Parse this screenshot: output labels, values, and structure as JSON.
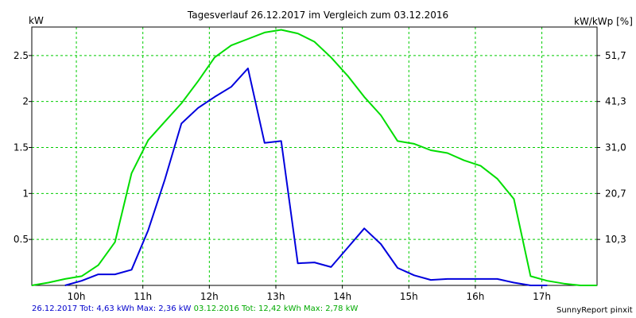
{
  "chart_data": {
    "type": "line",
    "title": "Tagesverlauf 26.12.2017 im Vergleich zum 03.12.2016",
    "ylabel": "kW",
    "ylabel_right": "kW/kWp [%]",
    "ylim": [
      0,
      2.81
    ],
    "x_ticks": [
      "10h",
      "11h",
      "12h",
      "13h",
      "14h",
      "15h",
      "16h",
      "17h"
    ],
    "y_ticks": [
      "0.5",
      "1",
      "1.5",
      "2",
      "2.5"
    ],
    "y_ticks_right": [
      "10,3",
      "20,7",
      "31,0",
      "41,3",
      "51,7"
    ],
    "grid": true,
    "colors": {
      "background": "#ffffff",
      "grid": "#00cc00",
      "axis": "#000000"
    },
    "series": [
      {
        "name": "26.12.2017",
        "color": "#0000dd",
        "x": [
          9.83,
          10.08,
          10.33,
          10.58,
          10.83,
          11.08,
          11.33,
          11.58,
          11.83,
          12.08,
          12.33,
          12.58,
          12.83,
          13.08,
          13.33,
          13.58,
          13.83,
          14.08,
          14.33,
          14.58,
          14.83,
          15.08,
          15.33,
          15.58,
          15.83,
          16.08,
          16.33,
          16.58,
          16.83,
          17.08
        ],
        "values": [
          0.0,
          0.05,
          0.12,
          0.12,
          0.17,
          0.6,
          1.15,
          1.76,
          1.93,
          2.05,
          2.16,
          2.36,
          1.55,
          1.57,
          0.24,
          0.25,
          0.2,
          0.41,
          0.62,
          0.45,
          0.19,
          0.11,
          0.06,
          0.07,
          0.07,
          0.07,
          0.07,
          0.03,
          0.0,
          0.0
        ]
      },
      {
        "name": "03.12.2016",
        "color": "#00dd00",
        "x": [
          9.33,
          9.58,
          9.83,
          10.08,
          10.33,
          10.58,
          10.83,
          11.08,
          11.33,
          11.58,
          11.83,
          12.08,
          12.33,
          12.58,
          12.83,
          13.08,
          13.33,
          13.58,
          13.83,
          14.08,
          14.33,
          14.58,
          14.83,
          15.08,
          15.33,
          15.58,
          15.83,
          16.08,
          16.33,
          16.58,
          16.83,
          17.08,
          17.33,
          17.58,
          17.83
        ],
        "values": [
          0.0,
          0.03,
          0.07,
          0.1,
          0.22,
          0.47,
          1.22,
          1.58,
          1.78,
          1.98,
          2.22,
          2.48,
          2.61,
          2.68,
          2.75,
          2.78,
          2.74,
          2.65,
          2.48,
          2.28,
          2.05,
          1.85,
          1.57,
          1.54,
          1.47,
          1.44,
          1.36,
          1.3,
          1.16,
          0.94,
          0.1,
          0.05,
          0.02,
          0.0,
          0.0
        ]
      }
    ]
  },
  "footer": {
    "series1_label": "26.12.2017 Tot: 4,63 kWh Max: 2,36 kW",
    "series2_label": "03.12.2016 Tot: 12,42 kWh Max: 2,78 kW",
    "watermark": "SunnyReport pinxit"
  }
}
